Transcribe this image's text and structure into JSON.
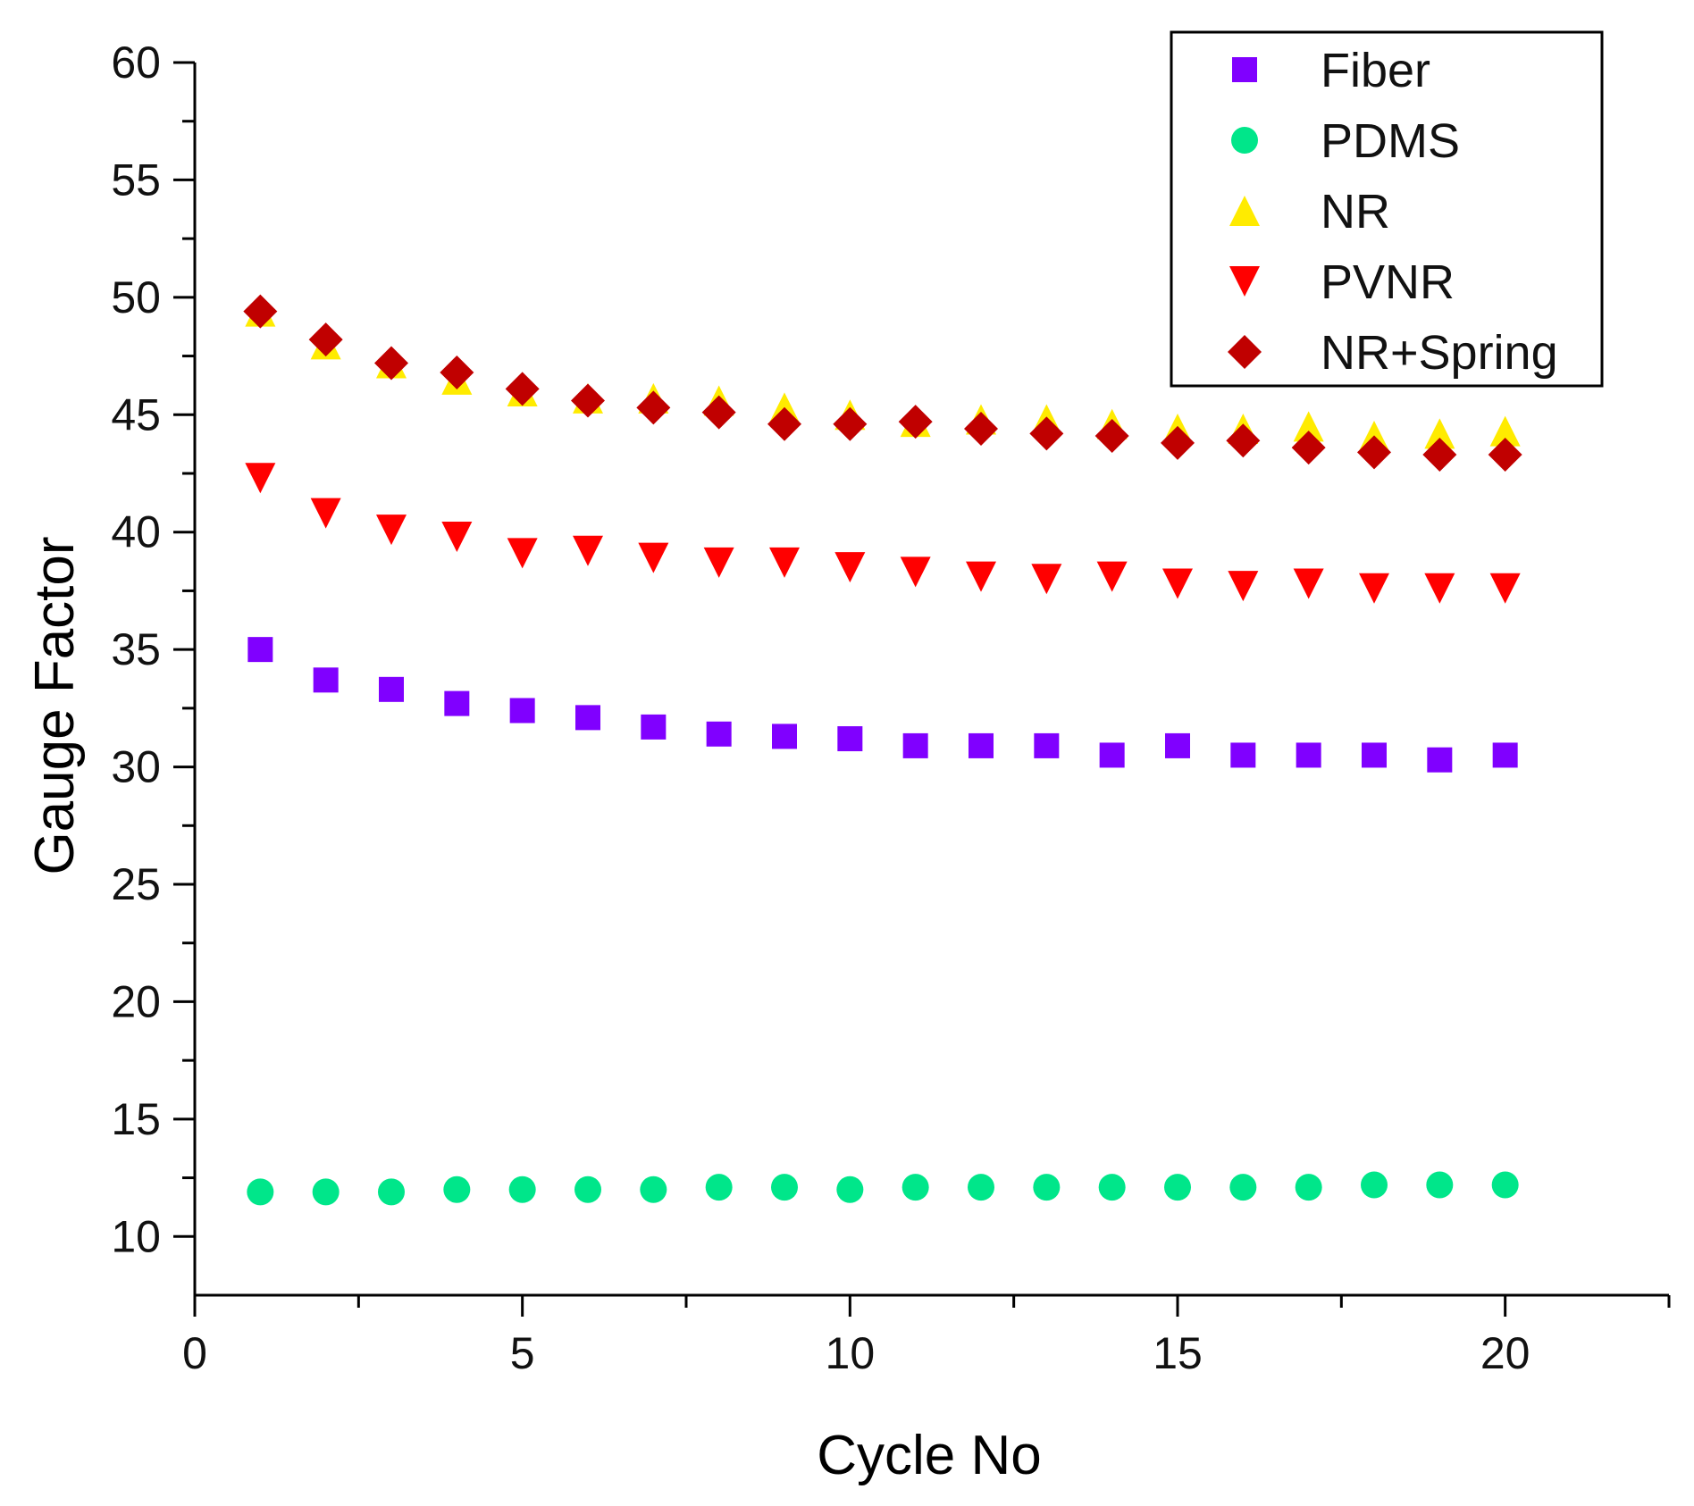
{
  "chart_data": {
    "type": "scatter",
    "title": "",
    "xlabel": "Cycle No",
    "ylabel": "Gauge Factor",
    "xlim": [
      0,
      22.5
    ],
    "ylim": [
      7.5,
      60
    ],
    "xticks": [
      0,
      5,
      10,
      15,
      20
    ],
    "yticks": [
      10,
      15,
      20,
      25,
      30,
      35,
      40,
      45,
      50,
      55,
      60
    ],
    "grid": false,
    "legend_position": "top-right",
    "x": [
      1,
      2,
      3,
      4,
      5,
      6,
      7,
      8,
      9,
      10,
      11,
      12,
      13,
      14,
      15,
      16,
      17,
      18,
      19,
      20
    ],
    "series": [
      {
        "name": "Fiber",
        "marker": "square",
        "color": "#8000FF",
        "values": [
          35.0,
          33.7,
          33.3,
          32.7,
          32.4,
          32.1,
          31.7,
          31.4,
          31.3,
          31.2,
          30.9,
          30.9,
          30.9,
          30.5,
          30.9,
          30.5,
          30.5,
          30.5,
          30.3,
          30.5
        ]
      },
      {
        "name": "PDMS",
        "marker": "circle",
        "color": "#00E68A",
        "values": [
          11.9,
          11.9,
          11.9,
          12.0,
          12.0,
          12.0,
          12.0,
          12.1,
          12.1,
          12.0,
          12.1,
          12.1,
          12.1,
          12.1,
          12.1,
          12.1,
          12.1,
          12.2,
          12.2,
          12.2
        ]
      },
      {
        "name": "NR",
        "marker": "triangle-up",
        "color": "#FFEB00",
        "values": [
          49.4,
          48.0,
          47.2,
          46.5,
          46.0,
          45.7,
          45.7,
          45.6,
          45.3,
          45.0,
          44.7,
          44.8,
          44.8,
          44.6,
          44.4,
          44.4,
          44.5,
          44.1,
          44.2,
          44.3
        ]
      },
      {
        "name": "PVNR",
        "marker": "triangle-down",
        "color": "#FF0000",
        "values": [
          42.3,
          40.8,
          40.1,
          39.8,
          39.1,
          39.2,
          38.9,
          38.7,
          38.7,
          38.5,
          38.3,
          38.1,
          38.0,
          38.1,
          37.8,
          37.7,
          37.8,
          37.6,
          37.6,
          37.6
        ]
      },
      {
        "name": "NR+Spring",
        "marker": "diamond",
        "color": "#C00000",
        "values": [
          49.4,
          48.2,
          47.2,
          46.8,
          46.1,
          45.6,
          45.3,
          45.1,
          44.6,
          44.6,
          44.7,
          44.4,
          44.2,
          44.1,
          43.8,
          43.9,
          43.6,
          43.4,
          43.3,
          43.3
        ]
      }
    ]
  }
}
